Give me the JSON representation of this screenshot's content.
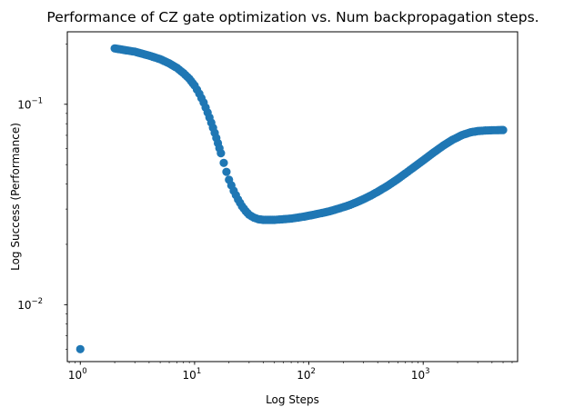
{
  "chart_data": {
    "type": "scatter",
    "title": "Performance of CZ gate optimization vs. Num backpropagation steps.",
    "xlabel": "Log Steps",
    "ylabel": "Log Success (Performance)",
    "x_scale": "log",
    "y_scale": "log",
    "xlim": [
      0.77,
      6700
    ],
    "ylim": [
      0.0052,
      0.23
    ],
    "x_ticks": [
      {
        "value": 1,
        "base": "10",
        "exp": "0"
      },
      {
        "value": 10,
        "base": "10",
        "exp": "1"
      },
      {
        "value": 100,
        "base": "10",
        "exp": "2"
      },
      {
        "value": 1000,
        "base": "10",
        "exp": "3"
      }
    ],
    "y_ticks": [
      {
        "value": 0.01,
        "base": "10",
        "exp": "−2"
      },
      {
        "value": 0.1,
        "base": "10",
        "exp": "−1"
      }
    ],
    "grid": false,
    "marker_color": "#1f77b4",
    "series": [
      {
        "x": [
          1,
          2,
          3,
          4,
          5,
          6,
          7,
          8,
          9,
          10,
          11,
          12,
          13,
          14,
          15,
          16,
          17,
          18,
          19,
          20,
          22,
          24,
          26,
          28,
          30,
          33,
          36,
          40,
          45,
          50,
          55,
          60,
          70,
          80,
          90,
          100,
          120,
          150,
          180,
          220,
          260,
          300,
          350,
          400,
          500,
          600,
          700,
          800,
          1000,
          1200,
          1500,
          1800,
          2200,
          2600,
          3000,
          3500,
          4000,
          4500,
          5000
        ],
        "y": [
          0.006,
          0.19,
          0.183,
          0.175,
          0.168,
          0.16,
          0.152,
          0.143,
          0.134,
          0.124,
          0.113,
          0.102,
          0.091,
          0.081,
          0.072,
          0.064,
          0.057,
          0.051,
          0.046,
          0.042,
          0.037,
          0.0335,
          0.031,
          0.0293,
          0.0281,
          0.0272,
          0.0267,
          0.0265,
          0.0265,
          0.0265,
          0.0266,
          0.0267,
          0.0269,
          0.0272,
          0.0275,
          0.0278,
          0.0284,
          0.0292,
          0.0301,
          0.0312,
          0.0324,
          0.0336,
          0.0351,
          0.0366,
          0.0395,
          0.0424,
          0.0452,
          0.0478,
          0.0525,
          0.0568,
          0.0622,
          0.0664,
          0.0703,
          0.0725,
          0.0735,
          0.074,
          0.0742,
          0.0743,
          0.0744
        ]
      }
    ]
  }
}
